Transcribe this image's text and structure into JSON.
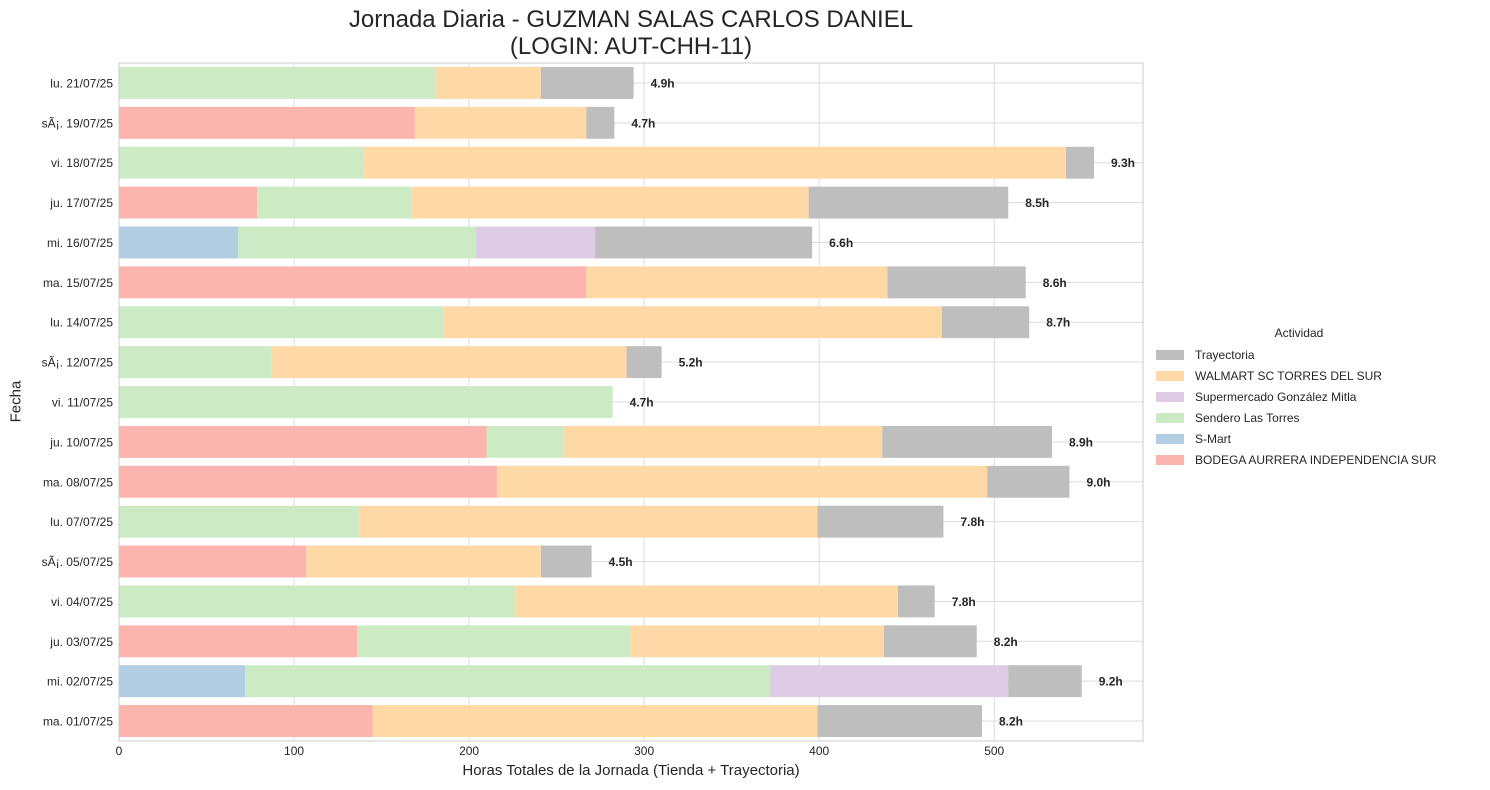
{
  "chart_data": {
    "type": "bar",
    "orientation": "horizontal",
    "stacked": true,
    "title": [
      "Jornada Diaria - GUZMAN SALAS CARLOS DANIEL",
      "(LOGIN: AUT-CHH-11)"
    ],
    "xlabel": "Horas Totales de la Jornada (Tienda + Trayectoria)",
    "ylabel": "Fecha",
    "xlim": [
      0,
      585
    ],
    "xticks": [
      0,
      100,
      200,
      300,
      400,
      500
    ],
    "grid": true,
    "legend": {
      "title": "Actividad",
      "placement": "right"
    },
    "colors": {
      "BODEGA AURRERA INDEPENDENCIA SUR": "#fbb4ae",
      "S-Mart": "#b3cde3",
      "Sendero Las Torres": "#ccebc5",
      "Supermercado González Mitla": "#decbe4",
      "WALMART SC TORRES DEL SUR": "#fed9a6",
      "Trayectoria": "#bebebe"
    },
    "series": [
      {
        "name": "BODEGA AURRERA INDEPENDENCIA SUR",
        "values": [
          0,
          169,
          0,
          79,
          0,
          267,
          0,
          0,
          0,
          210,
          216,
          0,
          107,
          0,
          136,
          0,
          145
        ]
      },
      {
        "name": "S-Mart",
        "values": [
          0,
          0,
          0,
          0,
          68,
          0,
          0,
          0,
          0,
          0,
          0,
          0,
          0,
          0,
          0,
          72,
          0
        ]
      },
      {
        "name": "Sendero Las Torres",
        "values": [
          181,
          0,
          140,
          88,
          136,
          0,
          185,
          87,
          282,
          44,
          0,
          137,
          0,
          226,
          156,
          300,
          0
        ]
      },
      {
        "name": "Supermercado González Mitla",
        "values": [
          0,
          0,
          0,
          0,
          68,
          0,
          0,
          0,
          0,
          0,
          0,
          0,
          0,
          0,
          0,
          136,
          0
        ]
      },
      {
        "name": "WALMART SC TORRES DEL SUR",
        "values": [
          60,
          98,
          401,
          227,
          0,
          172,
          285,
          203,
          0,
          182,
          280,
          262,
          134,
          219,
          145,
          0,
          254
        ]
      },
      {
        "name": "Trayectoria",
        "values": [
          53,
          16,
          16,
          114,
          124,
          79,
          50,
          20,
          0,
          97,
          47,
          72,
          29,
          21,
          53,
          42,
          94
        ]
      }
    ],
    "categories": [
      "lu. 21/07/25",
      "sÃ¡. 19/07/25",
      "vi. 18/07/25",
      "ju. 17/07/25",
      "mi. 16/07/25",
      "ma. 15/07/25",
      "lu. 14/07/25",
      "sÃ¡. 12/07/25",
      "vi. 11/07/25",
      "ju. 10/07/25",
      "ma. 08/07/25",
      "lu. 07/07/25",
      "sÃ¡. 05/07/25",
      "vi. 04/07/25",
      "ju. 03/07/25",
      "mi. 02/07/25",
      "ma. 01/07/25"
    ],
    "totals_labels": [
      "4.9h",
      "4.7h",
      "9.3h",
      "8.5h",
      "6.6h",
      "8.6h",
      "8.7h",
      "5.2h",
      "4.7h",
      "8.9h",
      "9.0h",
      "7.8h",
      "4.5h",
      "7.8h",
      "8.2h",
      "9.2h",
      "8.2h"
    ],
    "legend_order": [
      "Trayectoria",
      "WALMART SC TORRES DEL SUR",
      "Supermercado González Mitla",
      "Sendero Las Torres",
      "S-Mart",
      "BODEGA AURRERA INDEPENDENCIA SUR"
    ]
  }
}
